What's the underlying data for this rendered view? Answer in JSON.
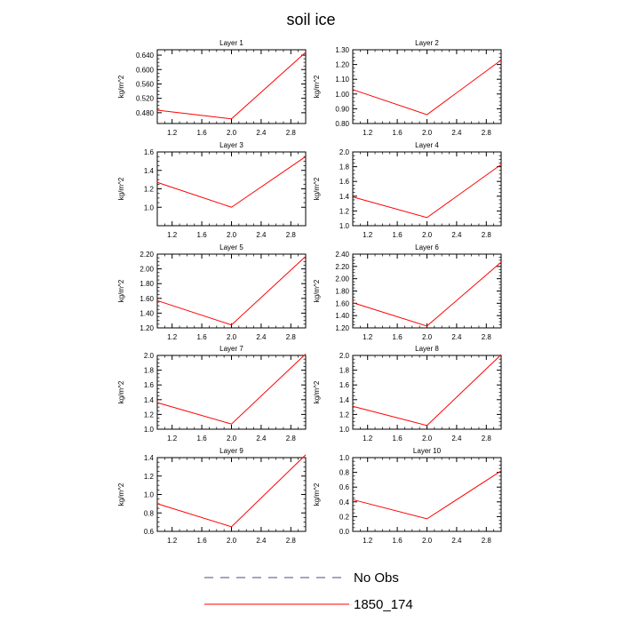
{
  "figure_title": "soil ice",
  "legend": [
    {
      "label": "No Obs",
      "color": "#4a4a8a",
      "style": "dashed"
    },
    {
      "label": "1850_174",
      "color": "#ff0000",
      "style": "solid"
    }
  ],
  "chart_data": [
    {
      "type": "line",
      "title": "Layer 1",
      "ylabel": "kg/m^2",
      "xlim": [
        1.0,
        3.0
      ],
      "ylim": [
        0.45,
        0.655
      ],
      "xticks": [
        1.2,
        1.6,
        2.0,
        2.4,
        2.8
      ],
      "xtick_labels": [
        "1.2",
        "1.6",
        "2.0",
        "2.4",
        "2.8"
      ],
      "yticks": [
        0.48,
        0.52,
        0.56,
        0.6,
        0.64
      ],
      "ytick_labels": [
        "0.480",
        "0.520",
        "0.560",
        "0.600",
        "0.640"
      ],
      "series": [
        {
          "name": "1850_174",
          "color": "#ff0000",
          "x": [
            1.0,
            2.0,
            3.0
          ],
          "y": [
            0.487,
            0.463,
            0.648
          ]
        }
      ]
    },
    {
      "type": "line",
      "title": "Layer 2",
      "ylabel": "kg/m^2",
      "xlim": [
        1.0,
        3.0
      ],
      "ylim": [
        0.8,
        1.3
      ],
      "xticks": [
        1.2,
        1.6,
        2.0,
        2.4,
        2.8
      ],
      "xtick_labels": [
        "1.2",
        "1.6",
        "2.0",
        "2.4",
        "2.8"
      ],
      "yticks": [
        0.8,
        0.9,
        1.0,
        1.1,
        1.2,
        1.3
      ],
      "ytick_labels": [
        "0.80",
        "0.90",
        "1.00",
        "1.10",
        "1.20",
        "1.30"
      ],
      "series": [
        {
          "name": "1850_174",
          "color": "#ff0000",
          "x": [
            1.0,
            2.0,
            3.0
          ],
          "y": [
            1.03,
            0.86,
            1.23
          ]
        }
      ]
    },
    {
      "type": "line",
      "title": "Layer 3",
      "ylabel": "kg/m^2",
      "xlim": [
        1.0,
        3.0
      ],
      "ylim": [
        0.8,
        1.6
      ],
      "xticks": [
        1.2,
        1.6,
        2.0,
        2.4,
        2.8
      ],
      "xtick_labels": [
        "1.2",
        "1.6",
        "2.0",
        "2.4",
        "2.8"
      ],
      "yticks": [
        1.0,
        1.2,
        1.4,
        1.6
      ],
      "ytick_labels": [
        "1.0",
        "1.2",
        "1.4",
        "1.6"
      ],
      "series": [
        {
          "name": "1850_174",
          "color": "#ff0000",
          "x": [
            1.0,
            2.0,
            3.0
          ],
          "y": [
            1.27,
            1.0,
            1.55
          ]
        }
      ]
    },
    {
      "type": "line",
      "title": "Layer 4",
      "ylabel": "kg/m^2",
      "xlim": [
        1.0,
        3.0
      ],
      "ylim": [
        1.0,
        2.0
      ],
      "xticks": [
        1.2,
        1.6,
        2.0,
        2.4,
        2.8
      ],
      "xtick_labels": [
        "1.2",
        "1.6",
        "2.0",
        "2.4",
        "2.8"
      ],
      "yticks": [
        1.0,
        1.2,
        1.4,
        1.6,
        1.8,
        2.0
      ],
      "ytick_labels": [
        "1.0",
        "1.2",
        "1.4",
        "1.6",
        "1.8",
        "2.0"
      ],
      "series": [
        {
          "name": "1850_174",
          "color": "#ff0000",
          "x": [
            1.0,
            2.0,
            3.0
          ],
          "y": [
            1.39,
            1.11,
            1.83
          ]
        }
      ]
    },
    {
      "type": "line",
      "title": "Layer 5",
      "ylabel": "kg/m^2",
      "xlim": [
        1.0,
        3.0
      ],
      "ylim": [
        1.2,
        2.2
      ],
      "xticks": [
        1.2,
        1.6,
        2.0,
        2.4,
        2.8
      ],
      "xtick_labels": [
        "1.2",
        "1.6",
        "2.0",
        "2.4",
        "2.8"
      ],
      "yticks": [
        1.2,
        1.4,
        1.6,
        1.8,
        2.0,
        2.2
      ],
      "ytick_labels": [
        "1.20",
        "1.40",
        "1.60",
        "1.80",
        "2.00",
        "2.20"
      ],
      "series": [
        {
          "name": "1850_174",
          "color": "#ff0000",
          "x": [
            1.0,
            2.0,
            3.0
          ],
          "y": [
            1.57,
            1.24,
            2.17
          ]
        }
      ]
    },
    {
      "type": "line",
      "title": "Layer 6",
      "ylabel": "kg/m^2",
      "xlim": [
        1.0,
        3.0
      ],
      "ylim": [
        1.2,
        2.4
      ],
      "xticks": [
        1.2,
        1.6,
        2.0,
        2.4,
        2.8
      ],
      "xtick_labels": [
        "1.2",
        "1.6",
        "2.0",
        "2.4",
        "2.8"
      ],
      "yticks": [
        1.2,
        1.4,
        1.6,
        1.8,
        2.0,
        2.2,
        2.4
      ],
      "ytick_labels": [
        "1.20",
        "1.40",
        "1.60",
        "1.80",
        "2.00",
        "2.20",
        "2.40"
      ],
      "series": [
        {
          "name": "1850_174",
          "color": "#ff0000",
          "x": [
            1.0,
            2.0,
            3.0
          ],
          "y": [
            1.61,
            1.23,
            2.27
          ]
        }
      ]
    },
    {
      "type": "line",
      "title": "Layer 7",
      "ylabel": "kg/m^2",
      "xlim": [
        1.0,
        3.0
      ],
      "ylim": [
        1.0,
        2.0
      ],
      "xticks": [
        1.2,
        1.6,
        2.0,
        2.4,
        2.8
      ],
      "xtick_labels": [
        "1.2",
        "1.6",
        "2.0",
        "2.4",
        "2.8"
      ],
      "yticks": [
        1.0,
        1.2,
        1.4,
        1.6,
        1.8,
        2.0
      ],
      "ytick_labels": [
        "1.0",
        "1.2",
        "1.4",
        "1.6",
        "1.8",
        "2.0"
      ],
      "series": [
        {
          "name": "1850_174",
          "color": "#ff0000",
          "x": [
            1.0,
            2.0,
            3.0
          ],
          "y": [
            1.36,
            1.07,
            2.02
          ]
        }
      ]
    },
    {
      "type": "line",
      "title": "Layer 8",
      "ylabel": "kg/m^2",
      "xlim": [
        1.0,
        3.0
      ],
      "ylim": [
        1.0,
        2.0
      ],
      "xticks": [
        1.2,
        1.6,
        2.0,
        2.4,
        2.8
      ],
      "xtick_labels": [
        "1.2",
        "1.6",
        "2.0",
        "2.4",
        "2.8"
      ],
      "yticks": [
        1.0,
        1.2,
        1.4,
        1.6,
        1.8,
        2.0
      ],
      "ytick_labels": [
        "1.0",
        "1.2",
        "1.4",
        "1.6",
        "1.8",
        "2.0"
      ],
      "series": [
        {
          "name": "1850_174",
          "color": "#ff0000",
          "x": [
            1.0,
            2.0,
            3.0
          ],
          "y": [
            1.31,
            1.05,
            2.01
          ]
        }
      ]
    },
    {
      "type": "line",
      "title": "Layer 9",
      "ylabel": "kg/m^2",
      "xlim": [
        1.0,
        3.0
      ],
      "ylim": [
        0.6,
        1.4
      ],
      "xticks": [
        1.2,
        1.6,
        2.0,
        2.4,
        2.8
      ],
      "xtick_labels": [
        "1.2",
        "1.6",
        "2.0",
        "2.4",
        "2.8"
      ],
      "yticks": [
        0.6,
        0.8,
        1.0,
        1.2,
        1.4
      ],
      "ytick_labels": [
        "0.6",
        "0.8",
        "1.0",
        "1.2",
        "1.4"
      ],
      "series": [
        {
          "name": "1850_174",
          "color": "#ff0000",
          "x": [
            1.0,
            2.0,
            3.0
          ],
          "y": [
            0.9,
            0.65,
            1.43
          ]
        }
      ]
    },
    {
      "type": "line",
      "title": "Layer 10",
      "ylabel": "kg/m^2",
      "xlim": [
        1.0,
        3.0
      ],
      "ylim": [
        0.0,
        1.0
      ],
      "xticks": [
        1.2,
        1.6,
        2.0,
        2.4,
        2.8
      ],
      "xtick_labels": [
        "1.2",
        "1.6",
        "2.0",
        "2.4",
        "2.8"
      ],
      "yticks": [
        0.0,
        0.2,
        0.4,
        0.6,
        0.8,
        1.0
      ],
      "ytick_labels": [
        "0.0",
        "0.2",
        "0.4",
        "0.6",
        "0.8",
        "1.0"
      ],
      "series": [
        {
          "name": "1850_174",
          "color": "#ff0000",
          "x": [
            1.0,
            2.0,
            3.0
          ],
          "y": [
            0.43,
            0.17,
            0.82
          ]
        }
      ]
    }
  ]
}
